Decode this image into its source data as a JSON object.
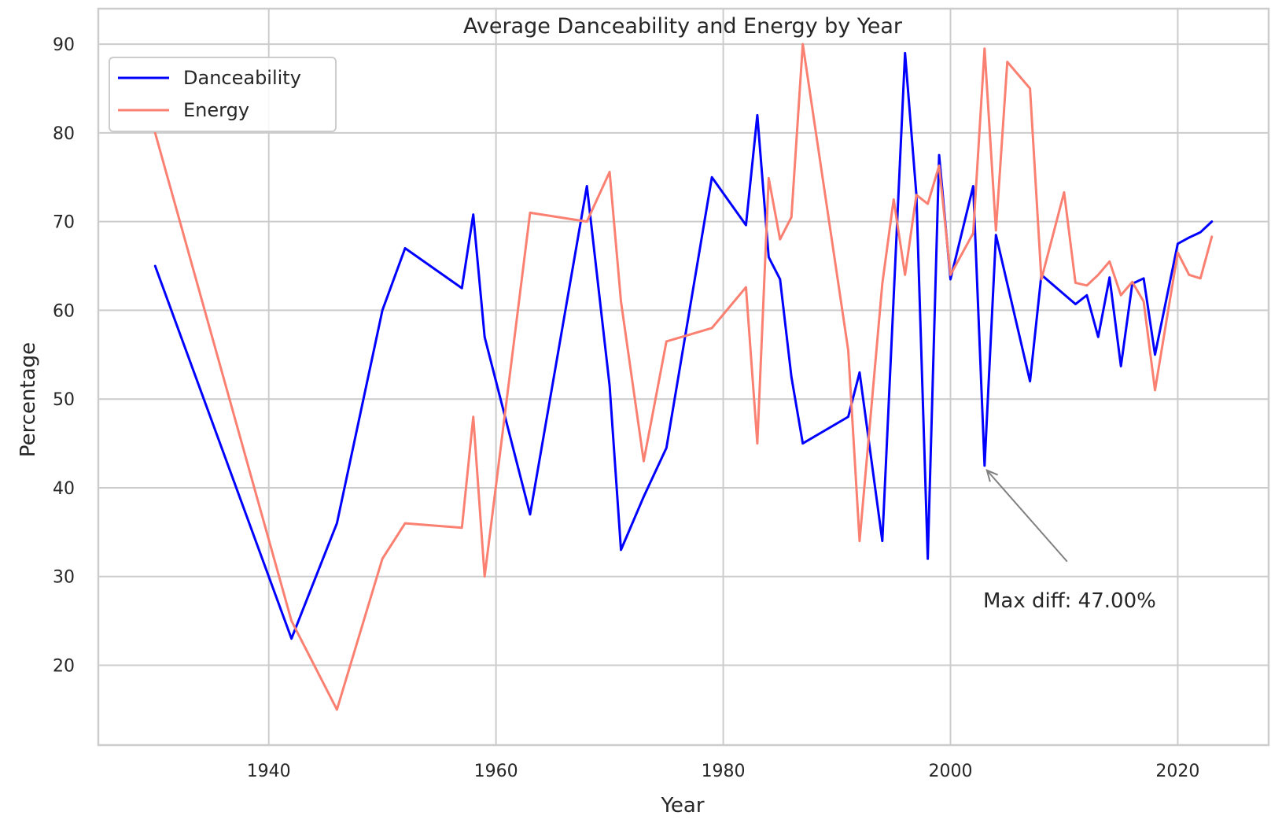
{
  "chart_data": {
    "type": "line",
    "title": "Average Danceability and Energy by Year",
    "xlabel": "Year",
    "ylabel": "Percentage",
    "xlim": [
      1925,
      2028
    ],
    "ylim": [
      11,
      94
    ],
    "xticks": [
      1940,
      1960,
      1980,
      2000,
      2020
    ],
    "yticks": [
      20,
      30,
      40,
      50,
      60,
      70,
      80,
      90
    ],
    "grid": true,
    "legend_position": "upper-left",
    "series": [
      {
        "name": "Danceability",
        "color": "#0000ff",
        "points": [
          [
            1930,
            65
          ],
          [
            1942,
            23
          ],
          [
            1946,
            36
          ],
          [
            1950,
            60
          ],
          [
            1952,
            67
          ],
          [
            1957,
            62.5
          ],
          [
            1958,
            70.8
          ],
          [
            1959,
            57
          ],
          [
            1963,
            37
          ],
          [
            1968,
            74
          ],
          [
            1970,
            51.5
          ],
          [
            1971,
            33
          ],
          [
            1973,
            39
          ],
          [
            1975,
            44.5
          ],
          [
            1979,
            75
          ],
          [
            1982,
            69.6
          ],
          [
            1983,
            82
          ],
          [
            1984,
            66
          ],
          [
            1985,
            63.5
          ],
          [
            1986,
            52.5
          ],
          [
            1987,
            45
          ],
          [
            1991,
            48
          ],
          [
            1992,
            53
          ],
          [
            1994,
            34
          ],
          [
            1996,
            89
          ],
          [
            1997,
            73
          ],
          [
            1998,
            32
          ],
          [
            1999,
            77.5
          ],
          [
            2000,
            63.5
          ],
          [
            2002,
            74
          ],
          [
            2003,
            42.5
          ],
          [
            2004,
            68.5
          ],
          [
            2007,
            52
          ],
          [
            2008,
            64
          ],
          [
            2010,
            61.8
          ],
          [
            2011,
            60.7
          ],
          [
            2012,
            61.7
          ],
          [
            2013,
            57
          ],
          [
            2014,
            63.7
          ],
          [
            2015,
            53.7
          ],
          [
            2016,
            63
          ],
          [
            2017,
            63.6
          ],
          [
            2018,
            55
          ],
          [
            2020,
            67.5
          ],
          [
            2021,
            68.2
          ],
          [
            2022,
            68.8
          ],
          [
            2023,
            70
          ]
        ]
      },
      {
        "name": "Energy",
        "color": "#fa8072",
        "points": [
          [
            1930,
            80
          ],
          [
            1942,
            25
          ],
          [
            1946,
            15
          ],
          [
            1950,
            32
          ],
          [
            1952,
            36
          ],
          [
            1957,
            35.5
          ],
          [
            1958,
            48
          ],
          [
            1959,
            30
          ],
          [
            1963,
            71
          ],
          [
            1968,
            70
          ],
          [
            1970,
            75.6
          ],
          [
            1971,
            61
          ],
          [
            1973,
            43
          ],
          [
            1975,
            56.5
          ],
          [
            1979,
            58
          ],
          [
            1982,
            62.6
          ],
          [
            1983,
            45
          ],
          [
            1984,
            74.9
          ],
          [
            1985,
            68
          ],
          [
            1986,
            70.5
          ],
          [
            1987,
            90
          ],
          [
            1991,
            55.5
          ],
          [
            1992,
            34
          ],
          [
            1994,
            63
          ],
          [
            1995,
            72.5
          ],
          [
            1996,
            64
          ],
          [
            1997,
            73
          ],
          [
            1998,
            72
          ],
          [
            1999,
            76.3
          ],
          [
            2000,
            64
          ],
          [
            2002,
            68.7
          ],
          [
            2003,
            89.5
          ],
          [
            2004,
            69
          ],
          [
            2005,
            88
          ],
          [
            2007,
            85
          ],
          [
            2008,
            63.5
          ],
          [
            2010,
            73.3
          ],
          [
            2011,
            63.1
          ],
          [
            2012,
            62.8
          ],
          [
            2013,
            64
          ],
          [
            2014,
            65.5
          ],
          [
            2015,
            61.7
          ],
          [
            2016,
            63.2
          ],
          [
            2017,
            61
          ],
          [
            2018,
            51
          ],
          [
            2020,
            66.5
          ],
          [
            2021,
            64
          ],
          [
            2022,
            63.6
          ],
          [
            2023,
            68.3
          ]
        ]
      }
    ],
    "annotations": [
      {
        "text": "Max diff: 47.00%",
        "point": [
          2003,
          42.5
        ]
      }
    ]
  }
}
